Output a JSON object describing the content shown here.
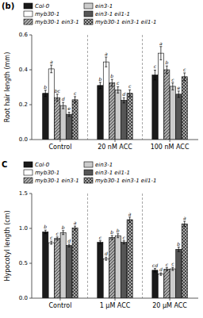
{
  "chart_data": [
    {
      "type": "bar",
      "title": "(b)",
      "ylabel": "Root hair length (mm)",
      "categories": [
        "Control",
        "20 nM ACC",
        "100 nM ACC"
      ],
      "ylim": [
        0.0,
        0.6
      ],
      "yticks": [
        {
          "value": 0.0,
          "label": "0.0"
        },
        0.2,
        0.4,
        0.6
      ],
      "grid": false,
      "legend": "upper left",
      "series": [
        {
          "name": "Col-0",
          "color": "#1a1a1a",
          "values": [
            0.265,
            0.31,
            0.37
          ],
          "errors": [
            0.018,
            0.018,
            0.028
          ],
          "annotations": [
            "b",
            "b",
            "c"
          ]
        },
        {
          "name": "myb30-1",
          "color": "#ffffff",
          "values": [
            0.405,
            0.445,
            0.495
          ],
          "errors": [
            0.022,
            0.028,
            0.038
          ],
          "annotations": [
            "a",
            "a",
            "a"
          ]
        },
        {
          "name": "myb30-1 ein3-1",
          "color": "#aaaaaa",
          "values": [
            0.24,
            0.325,
            0.4
          ],
          "errors": [
            0.02,
            0.02,
            0.022
          ],
          "annotations": [
            "bc",
            "b",
            "b"
          ]
        },
        {
          "name": "ein3-1",
          "color": "#cccccc",
          "values": [
            0.195,
            0.285,
            0.305
          ],
          "errors": [
            0.018,
            0.018,
            0.02
          ],
          "annotations": [
            "d",
            "c",
            "c"
          ]
        },
        {
          "name": "ein3-1 eil1-1",
          "color": "#555555",
          "values": [
            0.145,
            0.225,
            0.26
          ],
          "errors": [
            0.012,
            0.015,
            0.018
          ],
          "annotations": [
            "e",
            "d",
            "e"
          ]
        },
        {
          "name": "myb30-1 ein3-1 eil1-1",
          "color": "#aaaaaa",
          "values": [
            0.228,
            0.265,
            0.36
          ],
          "errors": [
            0.018,
            0.02,
            0.022
          ],
          "annotations": [
            "c",
            "c",
            "c"
          ]
        }
      ]
    },
    {
      "type": "bar",
      "title": "C",
      "ylabel": "Hypocotyl length (cm)",
      "categories": [
        "Control",
        "1 μM ACC",
        "20 μM ACC"
      ],
      "ylim": [
        0.0,
        1.5
      ],
      "yticks": [
        {
          "value": 0.0,
          "label": "0.0"
        },
        0.5,
        {
          "value": 1.0,
          "label": "1.0"
        },
        1.5
      ],
      "grid": false,
      "legend": "upper left",
      "series": [
        {
          "name": "Col-0",
          "color": "#1a1a1a",
          "values": [
            0.95,
            0.8,
            0.4
          ],
          "errors": [
            0.025,
            0.022,
            0.025
          ],
          "annotations": [
            "b",
            "c",
            "cd"
          ]
        },
        {
          "name": "myb30-1",
          "color": "#ffffff",
          "values": [
            0.795,
            0.565,
            0.345
          ],
          "errors": [
            0.022,
            0.022,
            0.018
          ],
          "annotations": [
            "c",
            "d",
            "d"
          ]
        },
        {
          "name": "myb30-1 ein3-1",
          "color": "#aaaaaa",
          "values": [
            0.855,
            0.87,
            0.415
          ],
          "errors": [
            0.022,
            0.028,
            0.022
          ],
          "annotations": [
            "c",
            "b",
            "c"
          ]
        },
        {
          "name": "ein3-1",
          "color": "#cccccc",
          "values": [
            0.94,
            0.895,
            0.42
          ],
          "errors": [
            0.028,
            0.028,
            0.022
          ],
          "annotations": [
            "b",
            "b",
            "c"
          ]
        },
        {
          "name": "ein3-1 eil1-1",
          "color": "#555555",
          "values": [
            0.755,
            0.8,
            0.7
          ],
          "errors": [
            0.02,
            0.022,
            0.032
          ],
          "annotations": [
            "d",
            "c",
            "b"
          ]
        },
        {
          "name": "myb30-1 ein3-1 eil1-1",
          "color": "#aaaaaa",
          "values": [
            1.005,
            1.125,
            1.065
          ],
          "errors": [
            0.028,
            0.038,
            0.038
          ],
          "annotations": [
            "a",
            "a",
            "a"
          ]
        }
      ]
    }
  ]
}
